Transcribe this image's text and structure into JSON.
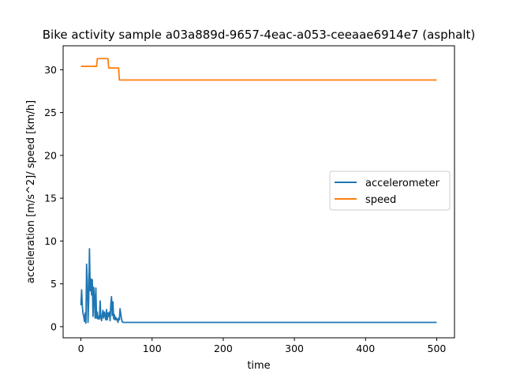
{
  "chart_data": {
    "type": "line",
    "title": "Bike activity sample a03a889d-9657-4eac-a053-ceeaae6914e7 (asphalt)",
    "xlabel": "time",
    "ylabel": "acceleration [m/s^2]/ speed [km/h]",
    "xlim": [
      -25,
      525
    ],
    "ylim": [
      -1.3,
      32.8
    ],
    "xticks": [
      0,
      100,
      200,
      300,
      400,
      500
    ],
    "yticks": [
      0,
      5,
      10,
      15,
      20,
      25,
      30
    ],
    "grid": false,
    "legend_position": "center-right",
    "series": [
      {
        "name": "accelerometer",
        "color": "#1f77b4",
        "x": [
          0,
          1,
          2,
          3,
          4,
          5,
          6,
          7,
          8,
          9,
          10,
          11,
          12,
          13,
          14,
          15,
          16,
          17,
          18,
          19,
          20,
          21,
          22,
          23,
          24,
          25,
          26,
          27,
          28,
          29,
          30,
          31,
          32,
          33,
          34,
          35,
          36,
          37,
          38,
          39,
          40,
          41,
          42,
          43,
          44,
          45,
          46,
          47,
          48,
          49,
          50,
          51,
          52,
          53,
          54,
          55,
          56,
          57,
          58,
          59,
          60,
          61,
          62,
          63,
          64,
          65,
          100,
          200,
          300,
          400,
          500
        ],
        "y": [
          2.5,
          4.3,
          2.4,
          1.5,
          1.2,
          0.6,
          1.6,
          0.4,
          7.3,
          5.3,
          0.5,
          3.3,
          9.1,
          4.2,
          5.6,
          3.7,
          5.5,
          1.2,
          4.6,
          3.3,
          1.0,
          4.5,
          1.0,
          1.7,
          0.9,
          1.2,
          0.9,
          3.0,
          1.1,
          0.7,
          1.3,
          1.9,
          1.0,
          1.7,
          1.4,
          0.8,
          2.0,
          0.8,
          1.6,
          1.2,
          1.7,
          0.7,
          2.6,
          3.5,
          1.3,
          2.9,
          0.9,
          1.4,
          0.8,
          1.1,
          0.8,
          0.9,
          0.5,
          1.0,
          0.8,
          2.1,
          1.5,
          0.9,
          0.6,
          0.5,
          0.5,
          0.5,
          0.5,
          0.5,
          0.5,
          0.5,
          0.5,
          0.5,
          0.5,
          0.5,
          0.5
        ]
      },
      {
        "name": "speed",
        "color": "#ff7f0e",
        "x": [
          0,
          22,
          23,
          38,
          39,
          53,
          54,
          500
        ],
        "y": [
          30.4,
          30.4,
          31.3,
          31.3,
          30.2,
          30.2,
          28.8,
          28.8
        ]
      }
    ]
  }
}
